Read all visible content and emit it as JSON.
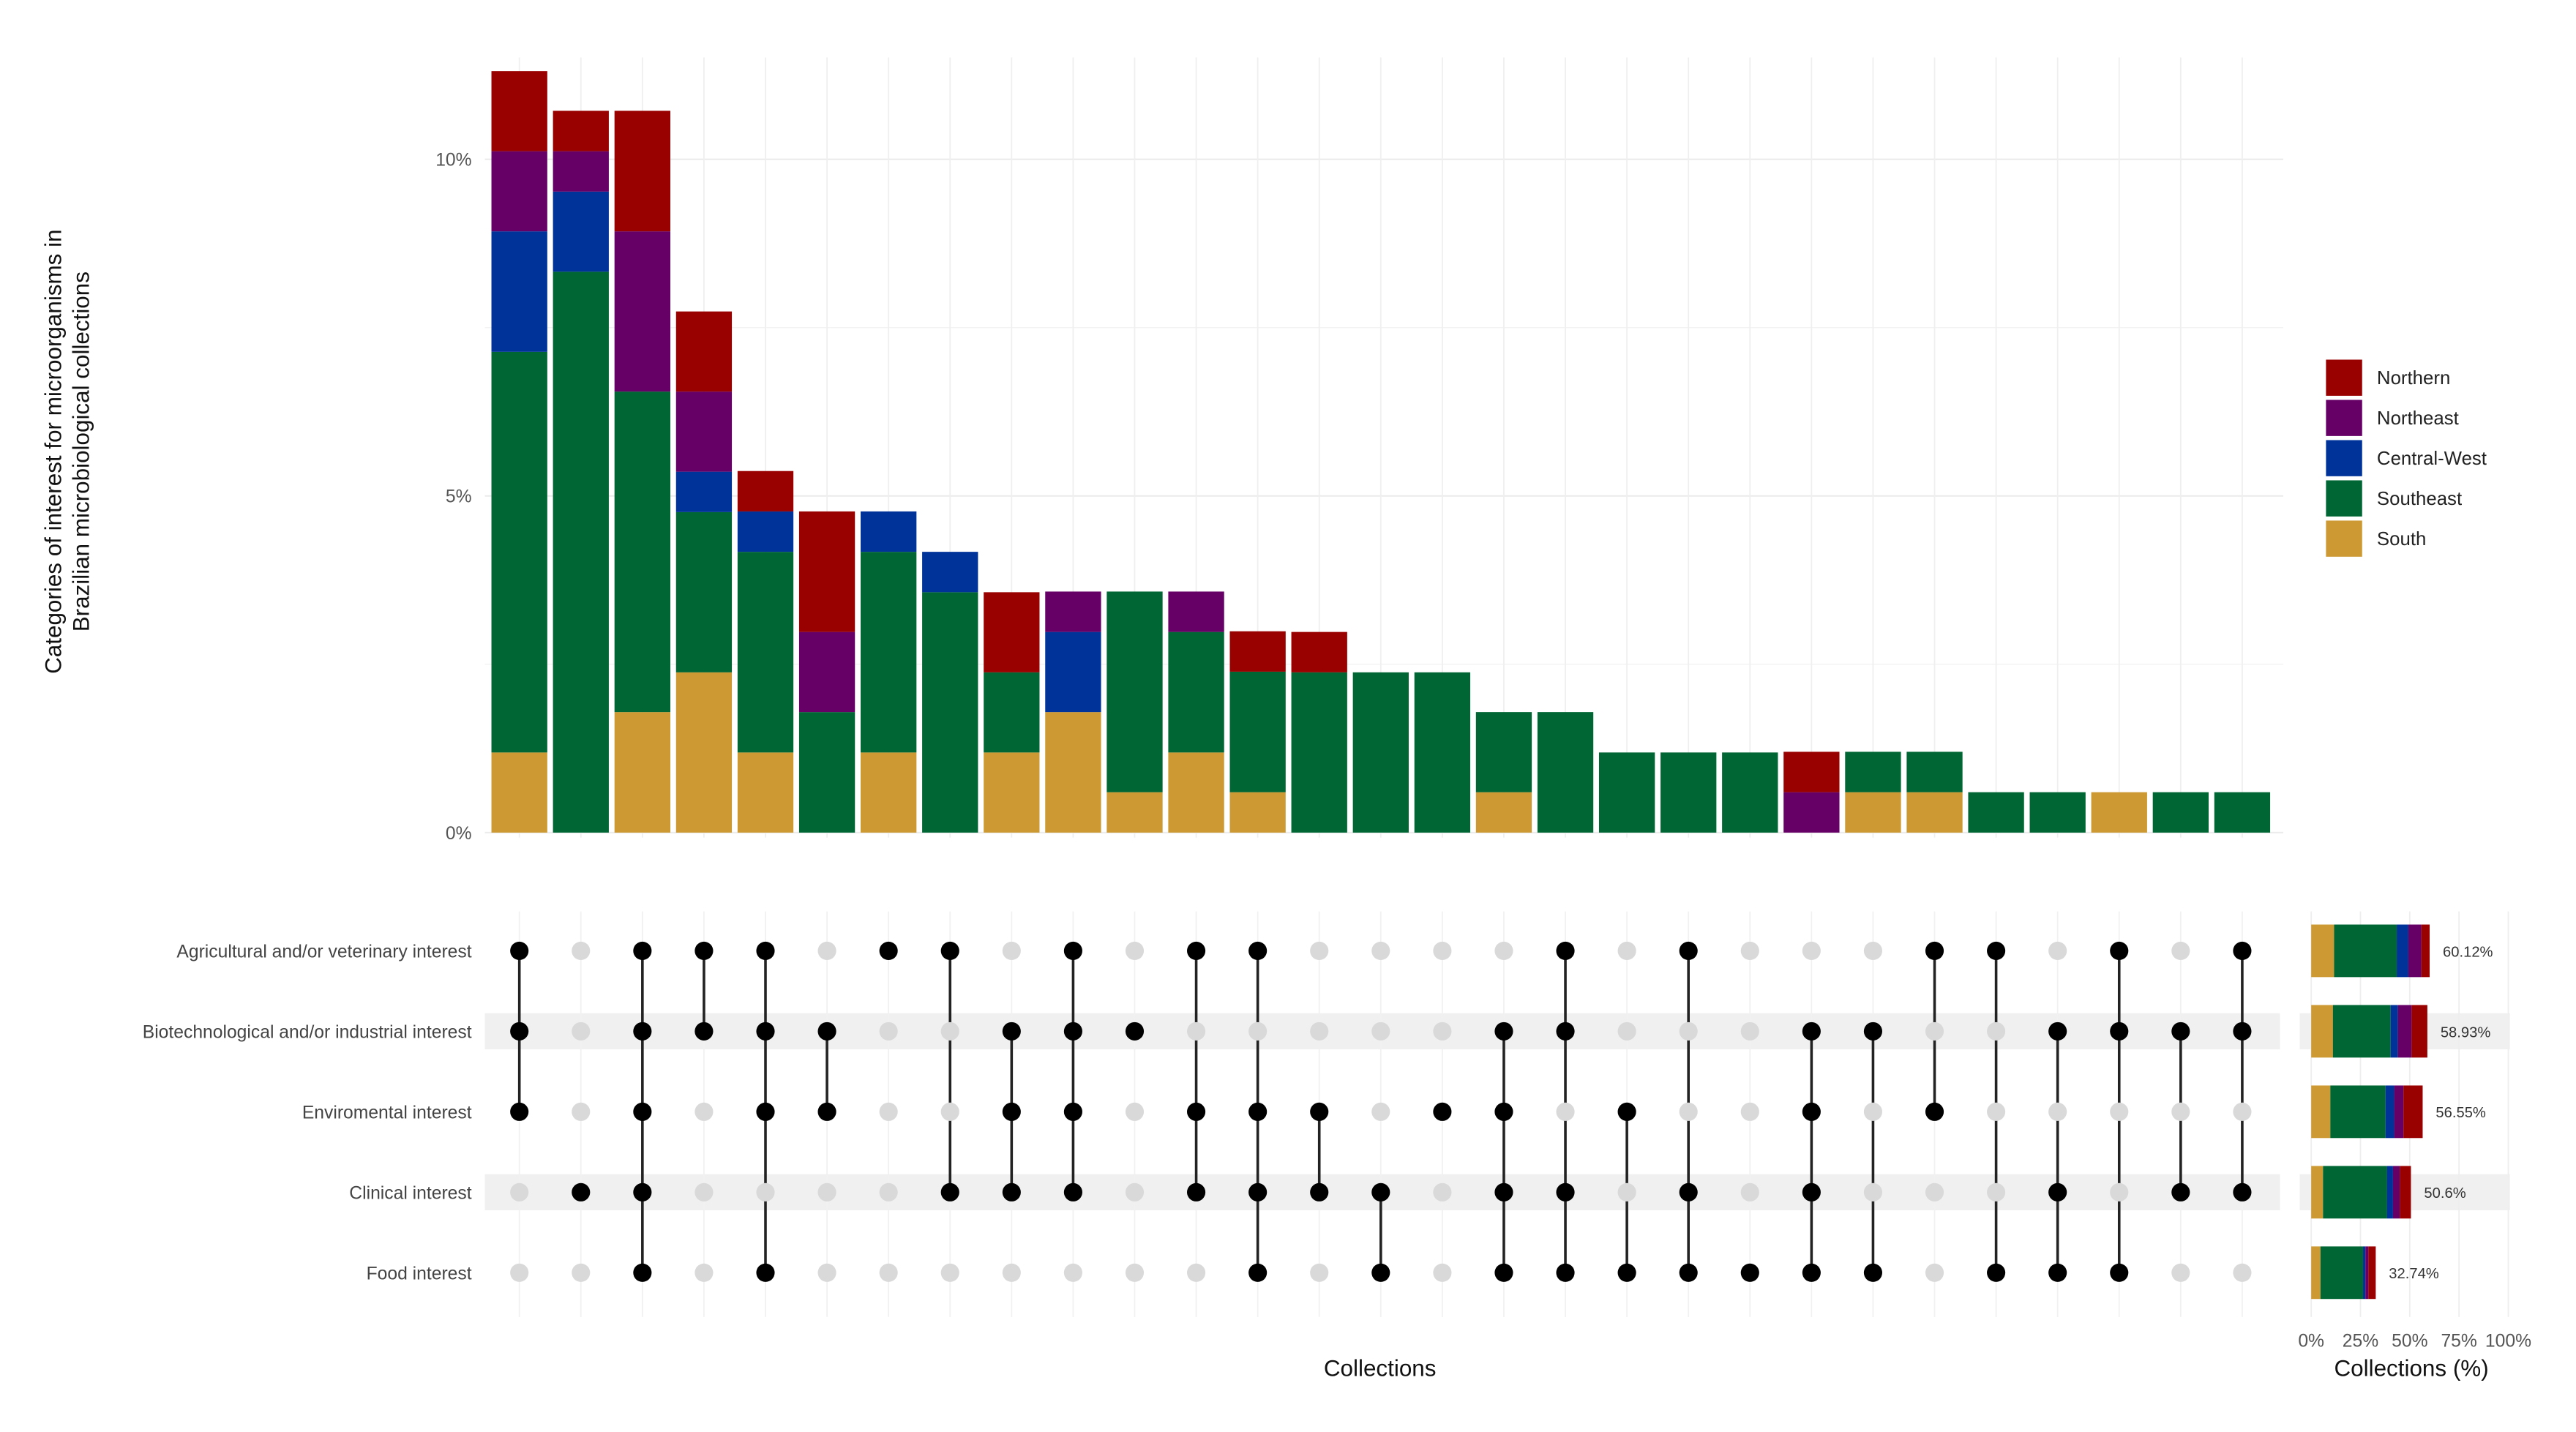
{
  "chart_data": {
    "type": "bar",
    "subtype": "upset",
    "ylabel": [
      "Categories of interest for microorganisms in",
      "Brazilian microbiological collections"
    ],
    "xlabel": "Collections",
    "ylim": [
      0,
      11.5
    ],
    "yticks": [
      "0%",
      "5%",
      "10%"
    ],
    "ytick_values": [
      0,
      5,
      10
    ],
    "grid": true,
    "legend": {
      "placement": "right",
      "entries": [
        "Northern",
        "Northeast",
        "Central-West",
        "Southeast",
        "South"
      ]
    },
    "colors": {
      "Northern": "#990000",
      "Northeast": "#660066",
      "Central-West": "#003399",
      "Southeast": "#006633",
      "South": "#cc9933"
    },
    "stack_order": [
      "South",
      "Southeast",
      "Central-West",
      "Northeast",
      "Northern"
    ],
    "series": [
      {
        "name": "South",
        "values": [
          1.19,
          0,
          1.79,
          2.38,
          1.19,
          0,
          1.19,
          0,
          1.19,
          1.79,
          0.6,
          1.19,
          0.6,
          0,
          0,
          0,
          0.6,
          0,
          0,
          0,
          0,
          0,
          0.6,
          0.6,
          0,
          0,
          0.6,
          0,
          0
        ]
      },
      {
        "name": "Southeast",
        "values": [
          5.95,
          8.33,
          4.76,
          2.38,
          2.98,
          1.79,
          2.98,
          3.57,
          1.19,
          0,
          2.98,
          1.79,
          1.79,
          2.38,
          2.38,
          2.38,
          1.19,
          1.79,
          1.19,
          1.19,
          1.19,
          0,
          0.6,
          0.6,
          0.6,
          0.6,
          0,
          0.6,
          0.6
        ]
      },
      {
        "name": "Central-West",
        "values": [
          1.79,
          1.19,
          0,
          0.6,
          0.6,
          0,
          0.6,
          0.6,
          0,
          1.19,
          0,
          0,
          0,
          0,
          0,
          0,
          0,
          0,
          0,
          0,
          0,
          0,
          0,
          0,
          0,
          0,
          0,
          0,
          0
        ]
      },
      {
        "name": "Northeast",
        "values": [
          1.19,
          0.6,
          2.38,
          1.19,
          0,
          1.19,
          0,
          0,
          0,
          0.6,
          0,
          0.6,
          0,
          0,
          0,
          0,
          0,
          0,
          0,
          0,
          0,
          0.6,
          0,
          0,
          0,
          0,
          0,
          0,
          0
        ]
      },
      {
        "name": "Northern",
        "values": [
          1.19,
          0.6,
          1.79,
          1.19,
          0.6,
          1.79,
          0,
          0,
          1.19,
          0,
          0,
          0,
          0.6,
          0.6,
          0,
          0,
          0,
          0,
          0,
          0,
          0,
          0.6,
          0,
          0,
          0,
          0,
          0,
          0,
          0
        ]
      }
    ],
    "sets": [
      "Agricultural and/or veterinary interest",
      "Biotechnological and/or industrial interest",
      "Enviromental interest",
      "Clinical interest",
      "Food interest"
    ],
    "intersections": [
      [
        0,
        1,
        2
      ],
      [
        3
      ],
      [
        0,
        1,
        2,
        3,
        4
      ],
      [
        0,
        1
      ],
      [
        0,
        1,
        2,
        4
      ],
      [
        1,
        2
      ],
      [
        0
      ],
      [
        0,
        3
      ],
      [
        1,
        2,
        3
      ],
      [
        0,
        1,
        2,
        3
      ],
      [
        1
      ],
      [
        0,
        2,
        3
      ],
      [
        0,
        2,
        3,
        4
      ],
      [
        2,
        3
      ],
      [
        3,
        4
      ],
      [
        2
      ],
      [
        1,
        2,
        3,
        4
      ],
      [
        0,
        1,
        3,
        4
      ],
      [
        2,
        4
      ],
      [
        0,
        3,
        4
      ],
      [
        4
      ],
      [
        1,
        2,
        3,
        4
      ],
      [
        1,
        4
      ],
      [
        0,
        2
      ],
      [
        0,
        4
      ],
      [
        1,
        3,
        4
      ],
      [
        0,
        1,
        4
      ],
      [
        1,
        3
      ],
      [
        0,
        1,
        3
      ]
    ],
    "set_sizes": {
      "xlabel": "Collections (%)",
      "xlim": [
        0,
        100
      ],
      "xticks": [
        "0%",
        "25%",
        "50%",
        "75%",
        "100%"
      ],
      "xtick_values": [
        0,
        25,
        50,
        75,
        100
      ],
      "totals": [
        60.12,
        58.93,
        56.55,
        50.6,
        32.74
      ],
      "labels": [
        "60.12%",
        "58.93%",
        "56.55%",
        "50.6%",
        "32.74%"
      ],
      "series": [
        {
          "name": "South",
          "values": [
            11.6,
            11.0,
            9.7,
            6.0,
            4.7
          ]
        },
        {
          "name": "Southeast",
          "values": [
            31.8,
            29.3,
            28.0,
            32.4,
            21.6
          ]
        },
        {
          "name": "Central-West",
          "values": [
            5.9,
            3.7,
            4.4,
            3.1,
            1.2
          ]
        },
        {
          "name": "Northeast",
          "values": [
            6.6,
            6.9,
            4.7,
            3.5,
            1.5
          ]
        },
        {
          "name": "Northern",
          "values": [
            4.2,
            8.03,
            9.75,
            5.6,
            3.74
          ]
        }
      ]
    }
  }
}
